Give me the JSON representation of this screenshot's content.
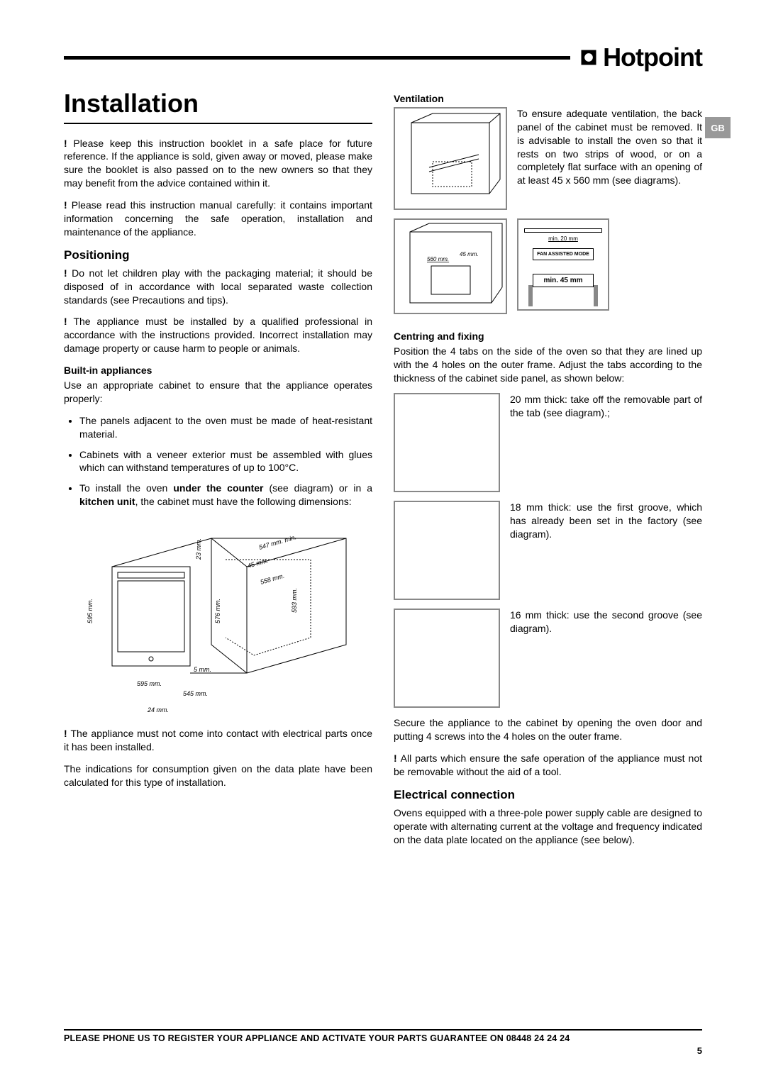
{
  "brand": "Hotpoint",
  "badge": "GB",
  "left": {
    "title": "Installation",
    "p1": "Please keep this instruction booklet in a safe place for future reference. If the appliance is sold, given away or moved, please make sure the booklet is also passed on to the new owners so that they may benefit from the advice contained within it.",
    "p2": "Please read this instruction manual carefully: it contains important information concerning the safe operation, installation and maintenance of the appliance.",
    "positioning_h": "Positioning",
    "p3": "Do not let children play with the packaging material; it should be disposed of in accordance with local separated waste collection standards (see Precautions and tips).",
    "p4": "The appliance must be installed by a qualified professional in accordance with the instructions provided. Incorrect installation may damage property or cause harm to people or animals.",
    "builtin_h": "Built-in appliances",
    "p5": "Use an appropriate cabinet to ensure that the appliance operates properly:",
    "bullets": [
      "The panels adjacent to the oven must be made of heat-resistant material.",
      "Cabinets with a veneer exterior must be assembled with glues which can withstand temperatures of up to 100°C.",
      "To install the oven <b>under the counter</b> (see diagram) or in a <b>kitchen unit</b>, the cabinet must have the following dimensions:"
    ],
    "dims": {
      "h595": "595 mm.",
      "w595": "595 mm.",
      "w545": "545 mm.",
      "d24": "24 mm.",
      "h576": "576 mm.",
      "h5": "5 mm.",
      "h23": "23 mm.",
      "d547": "547 mm. min.",
      "d45": "45 mm.",
      "d558": "558 mm.",
      "h593": "593 mm."
    },
    "p6": "The appliance must not come into contact with electrical parts once it has been installed.",
    "p7": "The indications for consumption given on the data plate have been calculated for this type of installation."
  },
  "right": {
    "vent_h": "Ventilation",
    "vent_p": "To ensure adequate ventilation, the back panel of the cabinet must be removed. It is advisable to install the oven so that it rests on two strips of wood, or on a completely flat surface with an opening of at least 45 x 560 mm (see diagrams).",
    "vent_dims": {
      "d560": "560 mm.",
      "d45": "45 mm."
    },
    "vent_box": {
      "min20": "min. 20 mm",
      "mode": "FAN ASSISTED MODE",
      "min45": "min. 45 mm"
    },
    "centring_h": "Centring and fixing",
    "centring_p": "Position the 4 tabs on the side of the oven so that they are lined up with the 4 holes on the outer frame. Adjust the tabs according to the thickness of the cabinet side panel, as shown below:",
    "tab20": "20 mm thick: take off the removable part of the tab (see diagram).;",
    "tab18": "18 mm thick: use the first groove, which has already been set in the factory (see diagram).",
    "tab16": "16 mm thick: use the second groove (see diagram).",
    "secure_p": "Secure the appliance to the cabinet by opening the oven door and putting 4 screws into the 4 holes on the outer frame.",
    "secure_warn": "All parts which ensure the safe operation of the appliance must not be removable without the aid of a tool.",
    "elec_h": "Electrical connection",
    "elec_p": "Ovens equipped with a three-pole power supply cable are designed to operate with alternating current at the voltage and frequency indicated on the data plate located on the appliance (see below)."
  },
  "footer": "PLEASE PHONE US TO REGISTER YOUR APPLIANCE AND ACTIVATE YOUR PARTS GUARANTEE ON 08448 24 24 24",
  "page": "5"
}
